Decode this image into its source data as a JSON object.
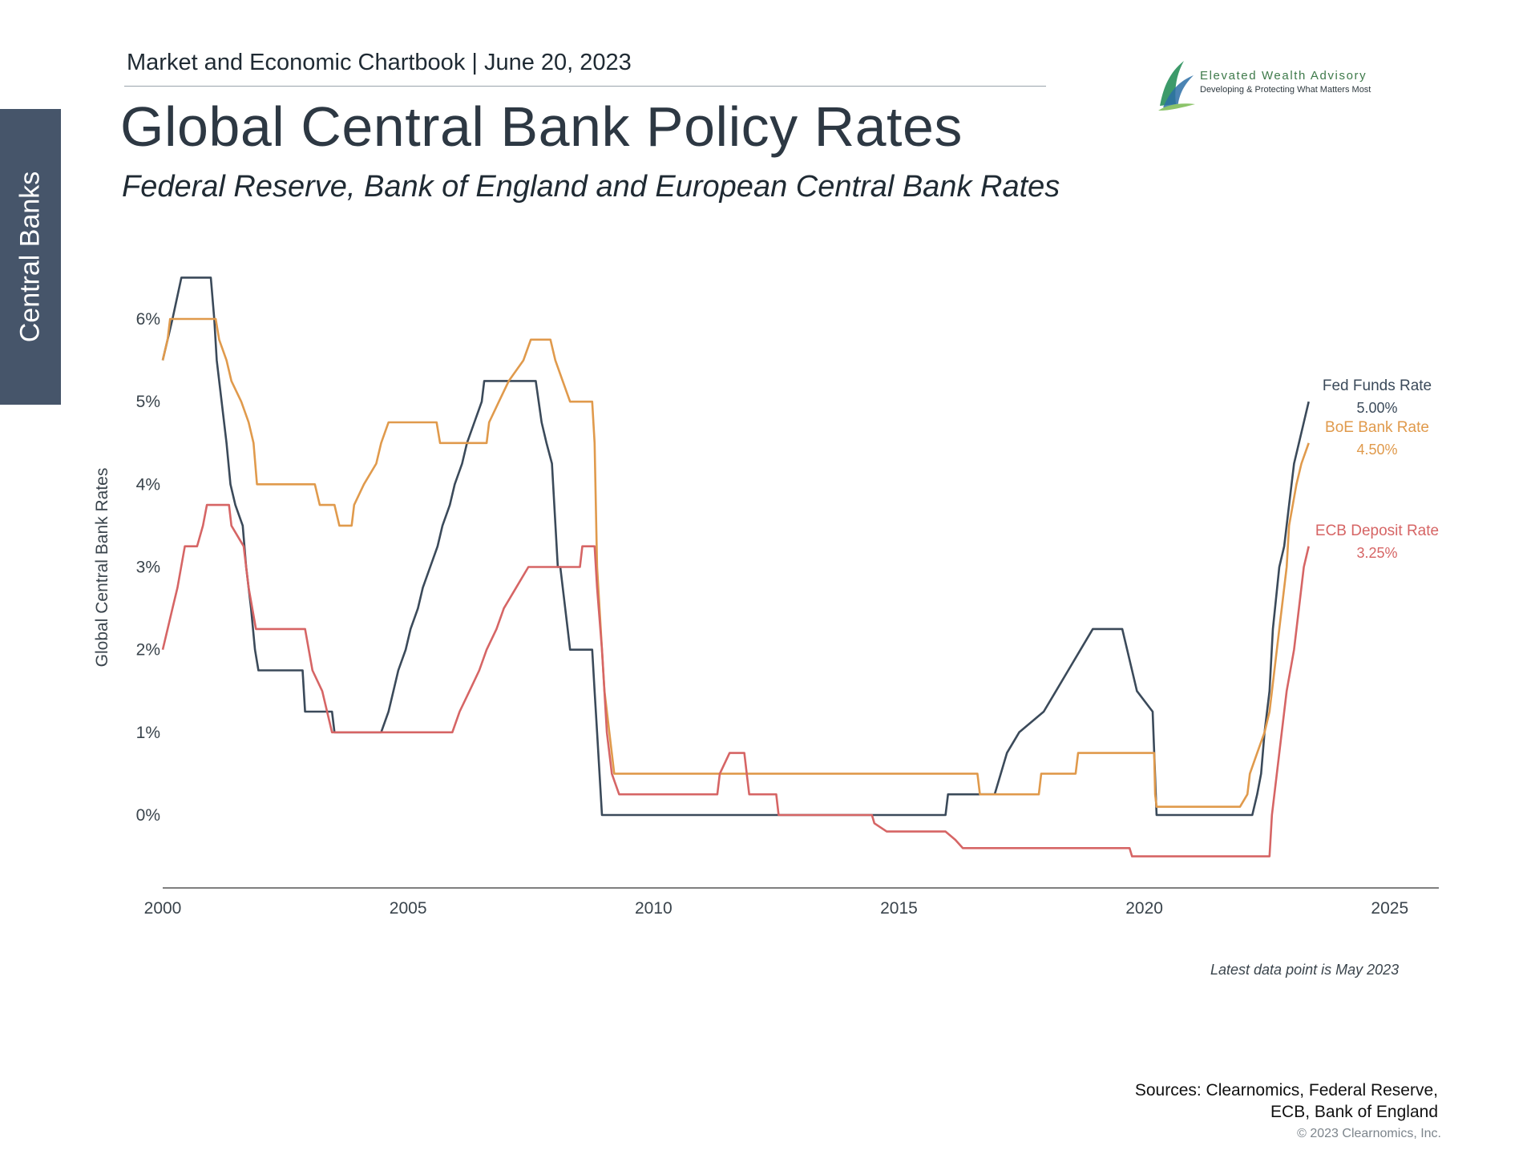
{
  "header": {
    "chartbook_line": "Market and Economic Chartbook | June 20, 2023",
    "title": "Global Central Bank Policy Rates",
    "subtitle": "Federal Reserve, Bank of England and European Central Bank Rates"
  },
  "side_tab": {
    "label": "Central Banks",
    "color": "#46556a"
  },
  "logo": {
    "name": "Elevated Wealth Advisory",
    "tagline": "Developing & Protecting What Matters Most",
    "icon": "sail-icon"
  },
  "footer": {
    "latest_note": "Latest data point is May 2023",
    "sources_line1": "Sources: Clearnomics, Federal Reserve,",
    "sources_line2": "ECB, Bank of England",
    "copyright": "© 2023 Clearnomics, Inc."
  },
  "chart_data": {
    "type": "line",
    "ylabel": "Global Central Bank Rates",
    "xlim": [
      2000,
      2026
    ],
    "ylim": [
      -0.875,
      6.0
    ],
    "x_ticks": [
      2000,
      2005,
      2010,
      2015,
      2020,
      2025
    ],
    "y_ticks": [
      0,
      1,
      2,
      3,
      4,
      5,
      6
    ],
    "y_tick_labels": [
      "0%",
      "1%",
      "2%",
      "3%",
      "4%",
      "5%",
      "6%"
    ],
    "series": [
      {
        "name": "Fed Funds Rate",
        "end_label": "5.00%",
        "color": "#3b4a5a",
        "points": [
          [
            2000.0,
            5.5
          ],
          [
            2000.1,
            5.75
          ],
          [
            2000.2,
            6.0
          ],
          [
            2000.38,
            6.5
          ],
          [
            2000.98,
            6.5
          ],
          [
            2001.05,
            6.0
          ],
          [
            2001.1,
            5.5
          ],
          [
            2001.2,
            5.0
          ],
          [
            2001.3,
            4.5
          ],
          [
            2001.38,
            4.0
          ],
          [
            2001.48,
            3.75
          ],
          [
            2001.63,
            3.5
          ],
          [
            2001.7,
            3.0
          ],
          [
            2001.8,
            2.5
          ],
          [
            2001.88,
            2.0
          ],
          [
            2001.95,
            1.75
          ],
          [
            2002.85,
            1.75
          ],
          [
            2002.9,
            1.25
          ],
          [
            2003.45,
            1.25
          ],
          [
            2003.5,
            1.0
          ],
          [
            2004.45,
            1.0
          ],
          [
            2004.6,
            1.25
          ],
          [
            2004.7,
            1.5
          ],
          [
            2004.8,
            1.75
          ],
          [
            2004.95,
            2.0
          ],
          [
            2005.05,
            2.25
          ],
          [
            2005.2,
            2.5
          ],
          [
            2005.3,
            2.75
          ],
          [
            2005.45,
            3.0
          ],
          [
            2005.6,
            3.25
          ],
          [
            2005.7,
            3.5
          ],
          [
            2005.85,
            3.75
          ],
          [
            2005.95,
            4.0
          ],
          [
            2006.1,
            4.25
          ],
          [
            2006.2,
            4.5
          ],
          [
            2006.35,
            4.75
          ],
          [
            2006.5,
            5.0
          ],
          [
            2006.55,
            5.25
          ],
          [
            2007.6,
            5.25
          ],
          [
            2007.72,
            4.75
          ],
          [
            2007.82,
            4.5
          ],
          [
            2007.93,
            4.25
          ],
          [
            2008.05,
            3.0
          ],
          [
            2008.1,
            3.0
          ],
          [
            2008.25,
            2.25
          ],
          [
            2008.3,
            2.0
          ],
          [
            2008.75,
            2.0
          ],
          [
            2008.8,
            1.5
          ],
          [
            2008.85,
            1.0
          ],
          [
            2008.95,
            0.0
          ],
          [
            2015.95,
            0.0
          ],
          [
            2016.0,
            0.25
          ],
          [
            2016.95,
            0.25
          ],
          [
            2017.2,
            0.75
          ],
          [
            2017.45,
            1.0
          ],
          [
            2017.95,
            1.25
          ],
          [
            2018.2,
            1.5
          ],
          [
            2018.45,
            1.75
          ],
          [
            2018.7,
            2.0
          ],
          [
            2018.95,
            2.25
          ],
          [
            2019.55,
            2.25
          ],
          [
            2019.65,
            2.0
          ],
          [
            2019.75,
            1.75
          ],
          [
            2019.85,
            1.5
          ],
          [
            2020.17,
            1.25
          ],
          [
            2020.25,
            0.0
          ],
          [
            2022.2,
            0.0
          ],
          [
            2022.3,
            0.25
          ],
          [
            2022.38,
            0.5
          ],
          [
            2022.45,
            1.0
          ],
          [
            2022.55,
            1.5
          ],
          [
            2022.62,
            2.25
          ],
          [
            2022.75,
            3.0
          ],
          [
            2022.85,
            3.25
          ],
          [
            2022.95,
            3.75
          ],
          [
            2023.05,
            4.25
          ],
          [
            2023.15,
            4.5
          ],
          [
            2023.25,
            4.75
          ],
          [
            2023.35,
            5.0
          ]
        ]
      },
      {
        "name": "BoE Bank Rate",
        "end_label": "4.50%",
        "color": "#e09a4c",
        "points": [
          [
            2000.0,
            5.5
          ],
          [
            2000.1,
            5.75
          ],
          [
            2000.15,
            6.0
          ],
          [
            2001.08,
            6.0
          ],
          [
            2001.15,
            5.75
          ],
          [
            2001.3,
            5.5
          ],
          [
            2001.4,
            5.25
          ],
          [
            2001.6,
            5.0
          ],
          [
            2001.75,
            4.75
          ],
          [
            2001.85,
            4.5
          ],
          [
            2001.92,
            4.0
          ],
          [
            2003.1,
            4.0
          ],
          [
            2003.2,
            3.75
          ],
          [
            2003.5,
            3.75
          ],
          [
            2003.6,
            3.5
          ],
          [
            2003.85,
            3.5
          ],
          [
            2003.9,
            3.75
          ],
          [
            2004.1,
            4.0
          ],
          [
            2004.35,
            4.25
          ],
          [
            2004.45,
            4.5
          ],
          [
            2004.6,
            4.75
          ],
          [
            2005.58,
            4.75
          ],
          [
            2005.65,
            4.5
          ],
          [
            2006.6,
            4.5
          ],
          [
            2006.65,
            4.75
          ],
          [
            2006.85,
            5.0
          ],
          [
            2007.05,
            5.25
          ],
          [
            2007.35,
            5.5
          ],
          [
            2007.5,
            5.75
          ],
          [
            2007.9,
            5.75
          ],
          [
            2008.0,
            5.5
          ],
          [
            2008.15,
            5.25
          ],
          [
            2008.3,
            5.0
          ],
          [
            2008.75,
            5.0
          ],
          [
            2008.8,
            4.5
          ],
          [
            2008.85,
            3.0
          ],
          [
            2008.95,
            2.0
          ],
          [
            2009.0,
            1.5
          ],
          [
            2009.1,
            1.0
          ],
          [
            2009.2,
            0.5
          ],
          [
            2016.6,
            0.5
          ],
          [
            2016.65,
            0.25
          ],
          [
            2017.85,
            0.25
          ],
          [
            2017.9,
            0.5
          ],
          [
            2018.6,
            0.5
          ],
          [
            2018.65,
            0.75
          ],
          [
            2020.2,
            0.75
          ],
          [
            2020.22,
            0.25
          ],
          [
            2020.25,
            0.1
          ],
          [
            2021.95,
            0.1
          ],
          [
            2022.1,
            0.25
          ],
          [
            2022.15,
            0.5
          ],
          [
            2022.3,
            0.75
          ],
          [
            2022.45,
            1.0
          ],
          [
            2022.55,
            1.25
          ],
          [
            2022.65,
            1.75
          ],
          [
            2022.75,
            2.25
          ],
          [
            2022.9,
            3.0
          ],
          [
            2022.95,
            3.5
          ],
          [
            2023.1,
            4.0
          ],
          [
            2023.2,
            4.25
          ],
          [
            2023.35,
            4.5
          ]
        ]
      },
      {
        "name": "ECB Deposit Rate",
        "end_label": "3.25%",
        "color": "#d66565",
        "points": [
          [
            2000.0,
            2.0
          ],
          [
            2000.1,
            2.25
          ],
          [
            2000.2,
            2.5
          ],
          [
            2000.3,
            2.75
          ],
          [
            2000.45,
            3.25
          ],
          [
            2000.7,
            3.25
          ],
          [
            2000.82,
            3.5
          ],
          [
            2000.9,
            3.75
          ],
          [
            2001.35,
            3.75
          ],
          [
            2001.4,
            3.5
          ],
          [
            2001.65,
            3.25
          ],
          [
            2001.75,
            2.75
          ],
          [
            2001.9,
            2.25
          ],
          [
            2002.9,
            2.25
          ],
          [
            2003.05,
            1.75
          ],
          [
            2003.25,
            1.5
          ],
          [
            2003.45,
            1.0
          ],
          [
            2005.9,
            1.0
          ],
          [
            2006.05,
            1.25
          ],
          [
            2006.25,
            1.5
          ],
          [
            2006.45,
            1.75
          ],
          [
            2006.6,
            2.0
          ],
          [
            2006.8,
            2.25
          ],
          [
            2006.95,
            2.5
          ],
          [
            2007.2,
            2.75
          ],
          [
            2007.45,
            3.0
          ],
          [
            2008.5,
            3.0
          ],
          [
            2008.55,
            3.25
          ],
          [
            2008.8,
            3.25
          ],
          [
            2008.85,
            2.75
          ],
          [
            2008.95,
            2.0
          ],
          [
            2009.05,
            1.0
          ],
          [
            2009.15,
            0.5
          ],
          [
            2009.3,
            0.25
          ],
          [
            2011.3,
            0.25
          ],
          [
            2011.35,
            0.5
          ],
          [
            2011.55,
            0.75
          ],
          [
            2011.85,
            0.75
          ],
          [
            2011.9,
            0.5
          ],
          [
            2011.95,
            0.25
          ],
          [
            2012.5,
            0.25
          ],
          [
            2012.55,
            0.0
          ],
          [
            2014.45,
            0.0
          ],
          [
            2014.5,
            -0.1
          ],
          [
            2014.75,
            -0.2
          ],
          [
            2015.95,
            -0.2
          ],
          [
            2016.15,
            -0.3
          ],
          [
            2016.3,
            -0.4
          ],
          [
            2019.7,
            -0.4
          ],
          [
            2019.75,
            -0.5
          ],
          [
            2022.55,
            -0.5
          ],
          [
            2022.6,
            0.0
          ],
          [
            2022.75,
            0.75
          ],
          [
            2022.9,
            1.5
          ],
          [
            2023.05,
            2.0
          ],
          [
            2023.15,
            2.5
          ],
          [
            2023.25,
            3.0
          ],
          [
            2023.35,
            3.25
          ]
        ]
      }
    ]
  }
}
